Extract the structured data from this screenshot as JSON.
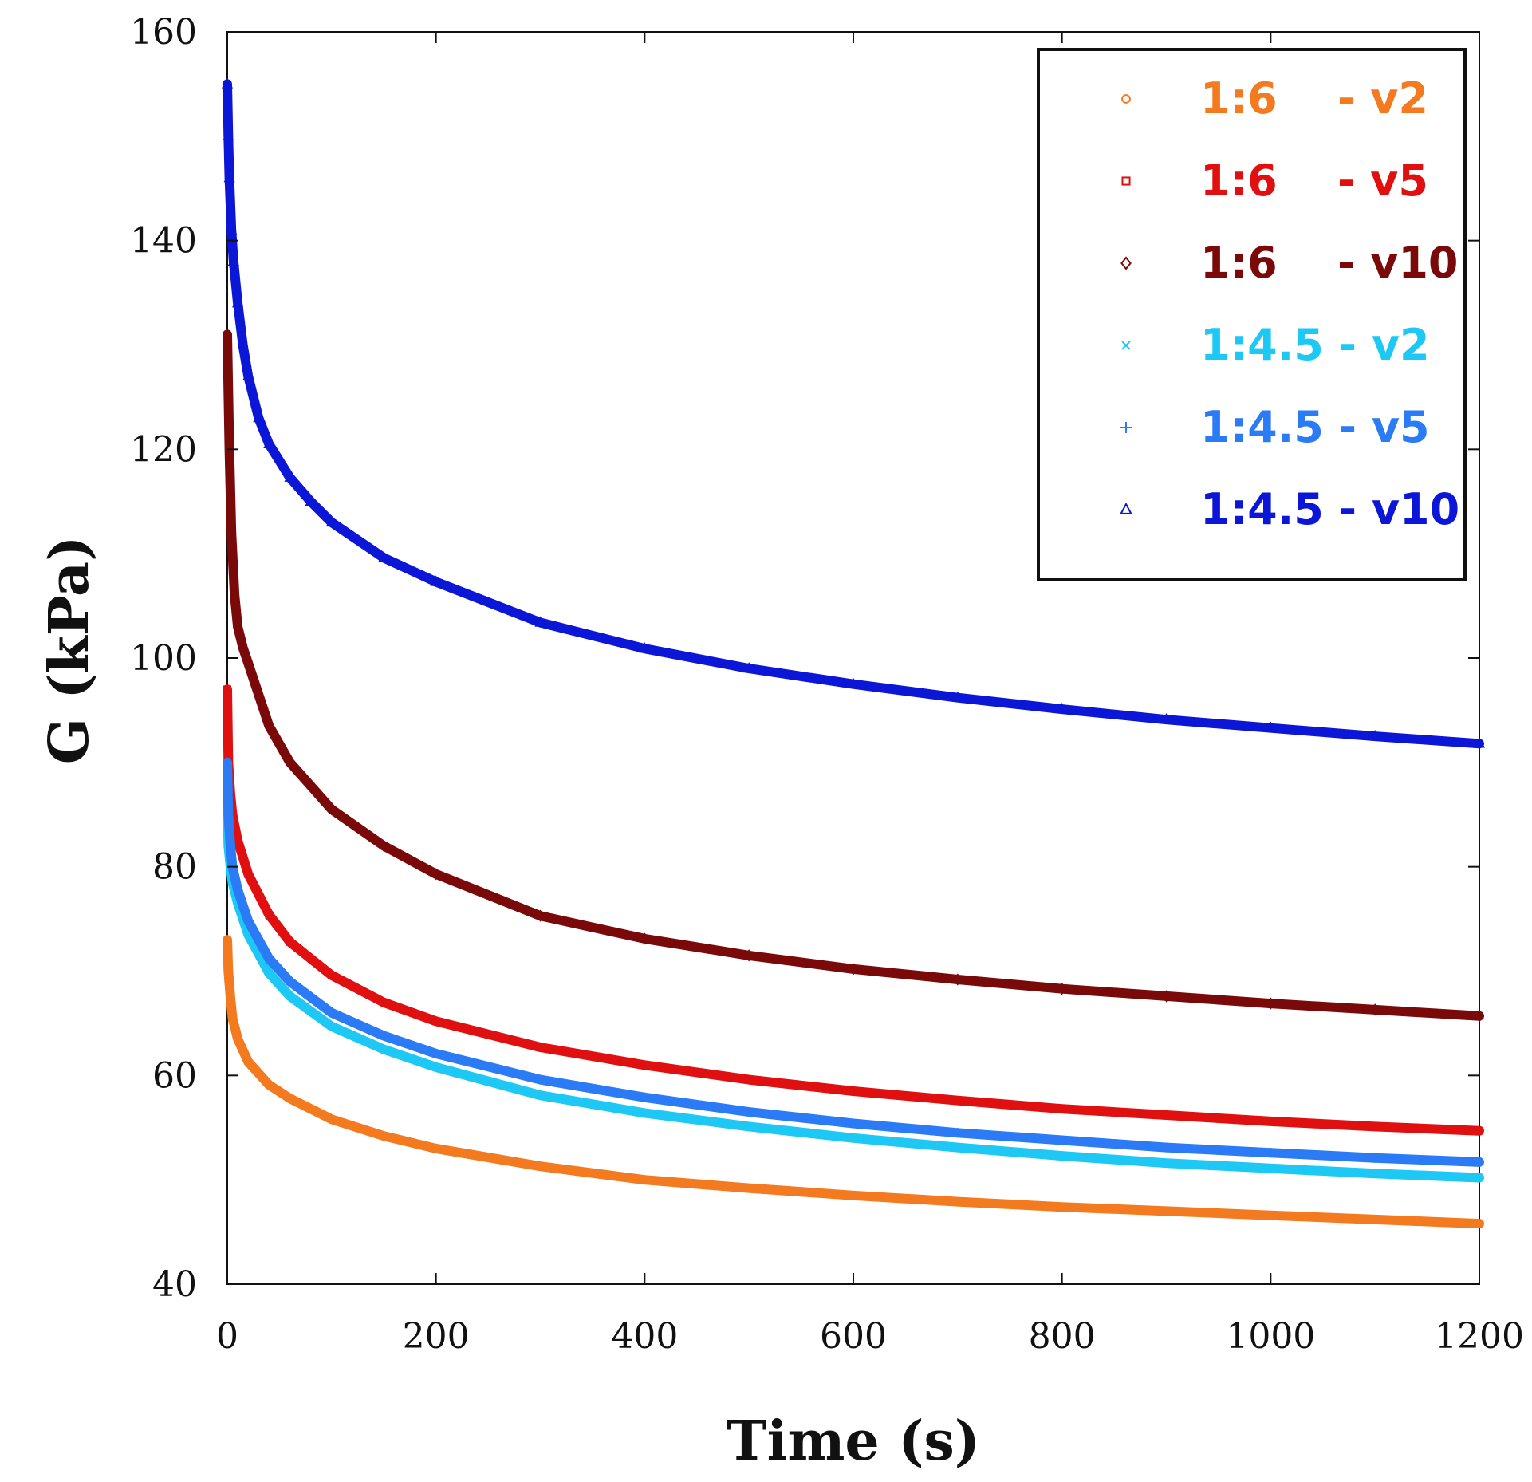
{
  "chart_data": {
    "type": "scatter",
    "title": "",
    "xlabel": "Time (s)",
    "ylabel": "G (kPa)",
    "xlim": [
      0,
      1200
    ],
    "ylim": [
      40,
      160
    ],
    "x_ticks": [
      0,
      200,
      400,
      600,
      800,
      1000,
      1200
    ],
    "y_ticks": [
      40,
      60,
      80,
      100,
      120,
      140,
      160
    ],
    "grid": false,
    "legend_position": "top-right",
    "series": [
      {
        "name": "1:6    - v2",
        "color": "#F47A20",
        "marker": "circle",
        "x": [
          0,
          1,
          3,
          5,
          10,
          20,
          40,
          60,
          100,
          150,
          200,
          300,
          400,
          500,
          600,
          700,
          800,
          900,
          1000,
          1100,
          1200
        ],
        "y": [
          73,
          70,
          67.5,
          65.5,
          63.5,
          61.3,
          59.1,
          57.8,
          55.8,
          54.2,
          53,
          51.3,
          50,
          49.2,
          48.5,
          47.9,
          47.4,
          47,
          46.6,
          46.2,
          45.8
        ]
      },
      {
        "name": "1:6    - v5",
        "color": "#E01010",
        "marker": "square",
        "x": [
          0,
          1,
          3,
          5,
          10,
          20,
          40,
          60,
          100,
          150,
          200,
          300,
          400,
          500,
          600,
          700,
          800,
          900,
          1000,
          1100,
          1200
        ],
        "y": [
          97,
          90,
          87,
          85,
          82.5,
          79.3,
          75.4,
          72.8,
          69.6,
          67,
          65.2,
          62.7,
          61,
          59.6,
          58.5,
          57.6,
          56.8,
          56.2,
          55.6,
          55.1,
          54.7
        ]
      },
      {
        "name": "1:6    - v10",
        "color": "#7A0A0A",
        "marker": "diamond",
        "x": [
          0,
          2,
          4,
          7,
          10,
          15,
          20,
          40,
          60,
          100,
          150,
          200,
          300,
          400,
          500,
          600,
          700,
          800,
          900,
          1000,
          1100,
          1200
        ],
        "y": [
          131,
          120,
          112,
          106,
          103,
          101,
          99.5,
          93.5,
          90,
          85.5,
          82,
          79.3,
          75.3,
          73.1,
          71.5,
          70.2,
          69.2,
          68.3,
          67.6,
          66.9,
          66.3,
          65.7
        ]
      },
      {
        "name": "1:4.5 - v2",
        "color": "#1EC8F5",
        "marker": "x",
        "x": [
          0,
          1,
          3,
          5,
          10,
          20,
          40,
          60,
          100,
          150,
          200,
          300,
          400,
          500,
          600,
          700,
          800,
          900,
          1000,
          1100,
          1200
        ],
        "y": [
          86,
          82,
          80,
          78.5,
          76.5,
          73.5,
          69.8,
          67.6,
          64.7,
          62.5,
          60.8,
          58.1,
          56.4,
          55.1,
          54,
          53.1,
          52.3,
          51.6,
          51.1,
          50.6,
          50.2
        ]
      },
      {
        "name": "1:4.5 - v5",
        "color": "#2A7BF5",
        "marker": "plus",
        "x": [
          0,
          1,
          3,
          5,
          10,
          20,
          40,
          60,
          100,
          150,
          200,
          300,
          400,
          500,
          600,
          700,
          800,
          900,
          1000,
          1100,
          1200
        ],
        "y": [
          90,
          85,
          82,
          80,
          77.8,
          74.8,
          71.2,
          69,
          66,
          63.8,
          62.1,
          59.6,
          57.9,
          56.5,
          55.4,
          54.5,
          53.8,
          53.1,
          52.6,
          52.1,
          51.7
        ]
      },
      {
        "name": "1:4.5 - v10",
        "color": "#0B16D6",
        "marker": "triangle",
        "x": [
          0,
          1,
          2,
          4,
          6,
          10,
          15,
          20,
          30,
          40,
          60,
          80,
          100,
          150,
          200,
          300,
          400,
          500,
          600,
          700,
          800,
          900,
          1000,
          1100,
          1200
        ],
        "y": [
          155,
          150,
          146,
          141,
          138,
          134,
          130,
          127,
          123,
          120.5,
          117.3,
          115,
          113,
          109.6,
          107.3,
          103.4,
          100.9,
          99,
          97.5,
          96.2,
          95.1,
          94.1,
          93.3,
          92.5,
          91.8
        ]
      }
    ]
  }
}
